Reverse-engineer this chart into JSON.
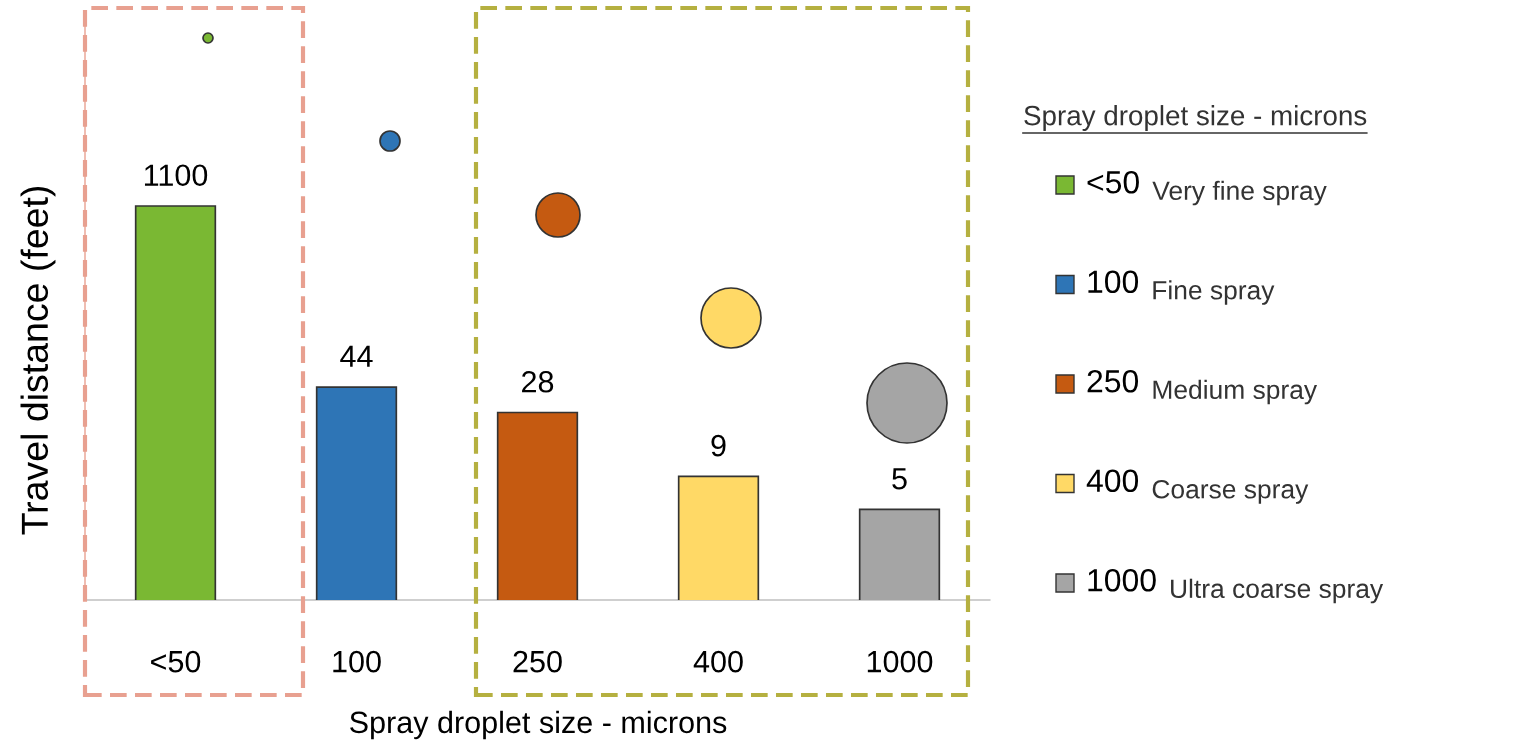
{
  "chart_data": {
    "type": "bar",
    "log": true,
    "ylim": [
      1,
      30000
    ],
    "tick_labels": "x",
    "data_labels": true,
    "xlabel": "Spray droplet size - microns",
    "ylabel": "Travel distance (feet)",
    "legend_title": "Spray droplet size - microns",
    "categories": [
      "<50",
      "100",
      "250",
      "400",
      "1000"
    ],
    "values": [
      1100,
      44,
      28,
      9,
      5
    ],
    "colors": [
      "#7ab833",
      "#2e75b6",
      "#c55a11",
      "#ffd966",
      "#a5a5a5"
    ],
    "annotations": [
      "Very fine spray",
      "Fine spray",
      "Medium spray",
      "Coarse spray",
      "Ultra coarse spray"
    ]
  }
}
